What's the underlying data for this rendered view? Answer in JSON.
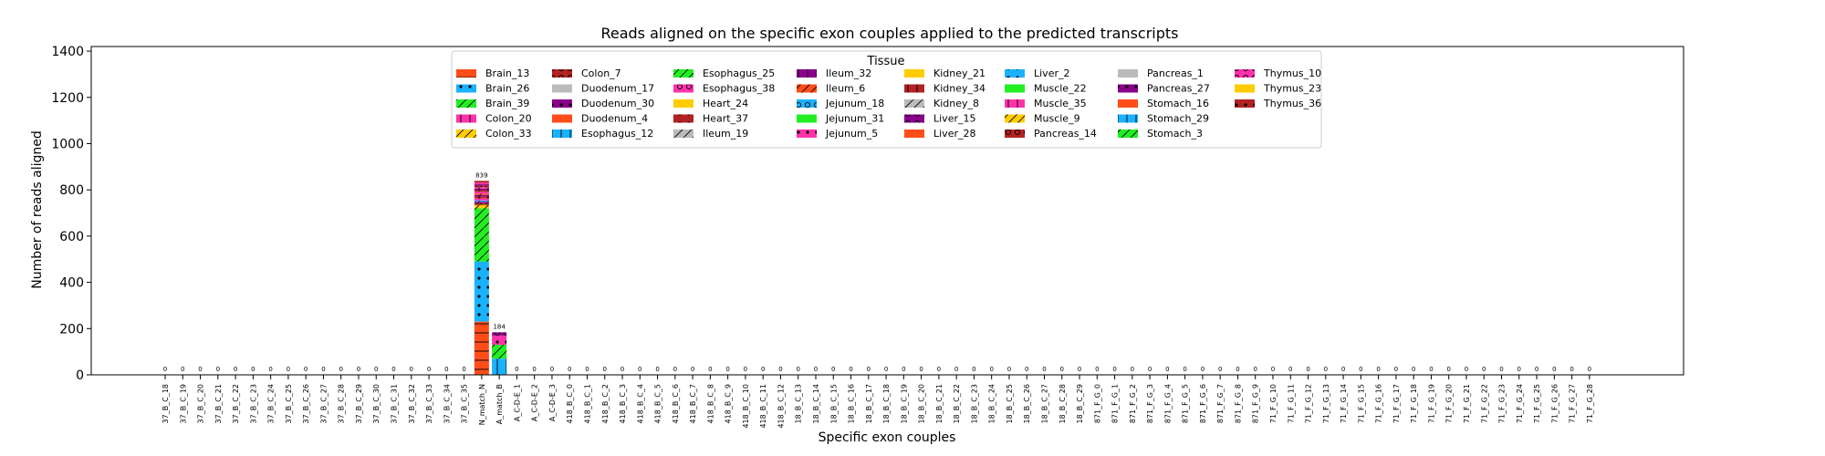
{
  "chart_data": {
    "type": "bar",
    "stacked": true,
    "title": "Reads aligned on the specific exon couples applied to the predicted transcripts",
    "xlabel": "Specific exon couples",
    "ylabel": "Number of reads aligned",
    "ylim": [
      0,
      1420
    ],
    "yticks": [
      0,
      200,
      400,
      600,
      800,
      1000,
      1200,
      1400
    ],
    "grid": false,
    "legend_title": "Tissue",
    "legend_placement": "top-center",
    "categories": [
      "37_B_C_18",
      "37_B_C_19",
      "37_B_C_20",
      "37_B_C_21",
      "37_B_C_22",
      "37_B_C_23",
      "37_B_C_24",
      "37_B_C_25",
      "37_B_C_26",
      "37_B_C_27",
      "37_B_C_28",
      "37_B_C_29",
      "37_B_C_30",
      "37_B_C_31",
      "37_B_C_32",
      "37_B_C_33",
      "37_B_C_34",
      "37_B_C_35",
      "N_match_N",
      "A_match_B",
      "A_C-D-E_1",
      "A_C-D-E_2",
      "A_C-D-E_3",
      "418_B_C_0",
      "418_B_C_1",
      "418_B_C_2",
      "418_B_C_3",
      "418_B_C_4",
      "418_B_C_5",
      "418_B_C_6",
      "418_B_C_7",
      "418_B_C_8",
      "418_B_C_9",
      "418_B_C_10",
      "418_B_C_11",
      "418_B_C_12",
      "18_B_C_13",
      "18_B_C_14",
      "18_B_C_15",
      "18_B_C_16",
      "18_B_C_17",
      "18_B_C_18",
      "18_B_C_19",
      "18_B_C_20",
      "18_B_C_21",
      "18_B_C_22",
      "18_B_C_23",
      "18_B_C_24",
      "18_B_C_25",
      "18_B_C_26",
      "18_B_C_27",
      "18_B_C_28",
      "18_B_C_29",
      "871_F_G_0",
      "871_F_G_1",
      "871_F_G_2",
      "871_F_G_3",
      "871_F_G_4",
      "871_F_G_5",
      "871_F_G_6",
      "871_F_G_7",
      "871_F_G_8",
      "871_F_G_9",
      "71_F_G_10",
      "71_F_G_11",
      "71_F_G_12",
      "71_F_G_13",
      "71_F_G_14",
      "71_F_G_15",
      "71_F_G_16",
      "71_F_G_17",
      "71_F_G_18",
      "71_F_G_19",
      "71_F_G_20",
      "71_F_G_21",
      "71_F_G_22",
      "71_F_G_23",
      "71_F_G_24",
      "71_F_G_25",
      "71_F_G_26",
      "71_F_G_27",
      "71_F_G_28"
    ],
    "totals": [
      0,
      0,
      0,
      0,
      0,
      0,
      0,
      0,
      0,
      0,
      0,
      0,
      0,
      0,
      0,
      0,
      0,
      0,
      839,
      184,
      0,
      0,
      0,
      0,
      0,
      0,
      0,
      0,
      0,
      0,
      0,
      0,
      0,
      0,
      0,
      0,
      0,
      0,
      0,
      0,
      0,
      0,
      0,
      0,
      0,
      0,
      0,
      0,
      0,
      0,
      0,
      0,
      0,
      0,
      0,
      0,
      0,
      0,
      0,
      0,
      0,
      0,
      0,
      0,
      0,
      0,
      0,
      0,
      0,
      0,
      0,
      0,
      0,
      0,
      0,
      0,
      0,
      0,
      0,
      0,
      0,
      0
    ],
    "total_labels": [
      "0",
      "0",
      "0",
      "0",
      "0",
      "0",
      "0",
      "0",
      "0",
      "0",
      "0",
      "0",
      "0",
      "0",
      "0",
      "0",
      "0",
      "0",
      "839",
      "184",
      "0",
      "0",
      "0",
      "0",
      "0",
      "0",
      "0",
      "0",
      "0",
      "0",
      "0",
      "0",
      "0",
      "0",
      "0",
      "0",
      "0",
      "0",
      "0",
      "0",
      "0",
      "0",
      "0",
      "0",
      "0",
      "0",
      "0",
      "0",
      "0",
      "0",
      "0",
      "0",
      "0",
      "0",
      "0",
      "0",
      "0",
      "0",
      "0",
      "0",
      "0",
      "0",
      "0",
      "0",
      "0",
      "0",
      "0",
      "0",
      "0",
      "0",
      "0",
      "0",
      "0",
      "0",
      "0",
      "0",
      "0",
      "0",
      "0",
      "0",
      "0",
      "0"
    ],
    "series": [
      {
        "name": "Brain_13",
        "color": "#ff4d1a",
        "hatch": "-"
      },
      {
        "name": "Brain_26",
        "color": "#1ab2ff",
        "hatch": "."
      },
      {
        "name": "Brain_39",
        "color": "#22ee22",
        "hatch": "/"
      },
      {
        "name": "Colon_20",
        "color": "#ff33aa",
        "hatch": "|"
      },
      {
        "name": "Colon_33",
        "color": "#ffcc00",
        "hatch": "/"
      },
      {
        "name": "Colon_7",
        "color": "#b22222",
        "hatch": "o"
      },
      {
        "name": "Duodenum_17",
        "color": "#bbbbbb",
        "hatch": ""
      },
      {
        "name": "Duodenum_30",
        "color": "#8b008b",
        "hatch": "."
      },
      {
        "name": "Duodenum_4",
        "color": "#ff4d1a",
        "hatch": ""
      },
      {
        "name": "Esophagus_12",
        "color": "#1ab2ff",
        "hatch": "|"
      },
      {
        "name": "Esophagus_25",
        "color": "#22ee22",
        "hatch": "/"
      },
      {
        "name": "Esophagus_38",
        "color": "#ff33aa",
        "hatch": "o"
      },
      {
        "name": "Heart_24",
        "color": "#ffcc00",
        "hatch": ""
      },
      {
        "name": "Heart_37",
        "color": "#b22222",
        "hatch": "."
      },
      {
        "name": "Ileum_19",
        "color": "#bbbbbb",
        "hatch": "/"
      },
      {
        "name": "Ileum_32",
        "color": "#8b008b",
        "hatch": "|"
      },
      {
        "name": "Ileum_6",
        "color": "#ff4d1a",
        "hatch": "/"
      },
      {
        "name": "Jejunum_18",
        "color": "#1ab2ff",
        "hatch": "o"
      },
      {
        "name": "Jejunum_31",
        "color": "#22ee22",
        "hatch": ""
      },
      {
        "name": "Jejunum_5",
        "color": "#ff33aa",
        "hatch": "."
      },
      {
        "name": "Kidney_21",
        "color": "#ffcc00",
        "hatch": ""
      },
      {
        "name": "Kidney_34",
        "color": "#b22222",
        "hatch": "|"
      },
      {
        "name": "Kidney_8",
        "color": "#bbbbbb",
        "hatch": "/"
      },
      {
        "name": "Liver_15",
        "color": "#8b008b",
        "hatch": "o"
      },
      {
        "name": "Liver_28",
        "color": "#ff4d1a",
        "hatch": ""
      },
      {
        "name": "Liver_2",
        "color": "#1ab2ff",
        "hatch": "."
      },
      {
        "name": "Muscle_22",
        "color": "#22ee22",
        "hatch": ""
      },
      {
        "name": "Muscle_35",
        "color": "#ff33aa",
        "hatch": "|"
      },
      {
        "name": "Muscle_9",
        "color": "#ffcc00",
        "hatch": "/"
      },
      {
        "name": "Pancreas_14",
        "color": "#b22222",
        "hatch": "o"
      },
      {
        "name": "Pancreas_1",
        "color": "#bbbbbb",
        "hatch": ""
      },
      {
        "name": "Pancreas_27",
        "color": "#8b008b",
        "hatch": "."
      },
      {
        "name": "Stomach_16",
        "color": "#ff4d1a",
        "hatch": ""
      },
      {
        "name": "Stomach_29",
        "color": "#1ab2ff",
        "hatch": "|"
      },
      {
        "name": "Stomach_3",
        "color": "#22ee22",
        "hatch": "/"
      },
      {
        "name": "Thymus_10",
        "color": "#ff33aa",
        "hatch": "o"
      },
      {
        "name": "Thymus_23",
        "color": "#ffcc00",
        "hatch": ""
      },
      {
        "name": "Thymus_36",
        "color": "#b22222",
        "hatch": "."
      }
    ],
    "stacks": [
      {
        "category": "N_match_N",
        "segments": [
          {
            "series": "Brain_13",
            "value": 230
          },
          {
            "series": "Brain_26",
            "value": 260
          },
          {
            "series": "Brain_39",
            "value": 230
          },
          {
            "series": "Colon_33",
            "value": 15
          },
          {
            "series": "Colon_7",
            "value": 8
          },
          {
            "series": "Duodenum_30",
            "value": 6
          },
          {
            "series": "Esophagus_12",
            "value": 5
          },
          {
            "series": "Esophagus_38",
            "value": 10
          },
          {
            "series": "Heart_37",
            "value": 8
          },
          {
            "series": "Ileum_32",
            "value": 6
          },
          {
            "series": "Ileum_6",
            "value": 6
          },
          {
            "series": "Jejunum_5",
            "value": 8
          },
          {
            "series": "Kidney_34",
            "value": 7
          },
          {
            "series": "Liver_15",
            "value": 6
          },
          {
            "series": "Muscle_35",
            "value": 7
          },
          {
            "series": "Pancreas_14",
            "value": 7
          },
          {
            "series": "Pancreas_27",
            "value": 5
          },
          {
            "series": "Thymus_10",
            "value": 7
          },
          {
            "series": "Thymus_36",
            "value": 8
          }
        ]
      },
      {
        "category": "A_match_B",
        "segments": [
          {
            "series": "Esophagus_12",
            "value": 70
          },
          {
            "series": "Esophagus_25",
            "value": 60
          },
          {
            "series": "Jejunum_5",
            "value": 40
          },
          {
            "series": "Liver_15",
            "value": 14
          }
        ]
      }
    ]
  }
}
